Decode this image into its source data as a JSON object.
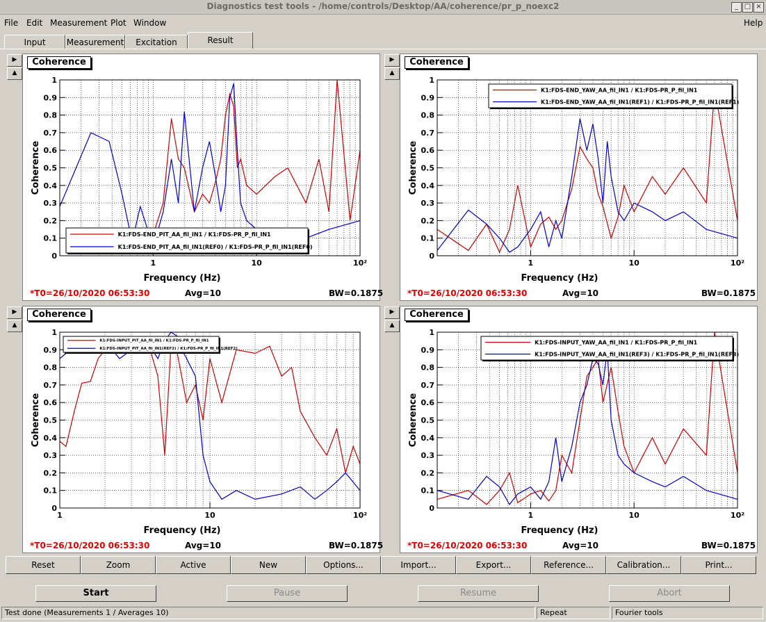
{
  "window": {
    "title": "Diagnostics test tools - /home/controls/Desktop/AA/coherence/pr_p_noexc2"
  },
  "menu": {
    "file": "File",
    "edit": "Edit",
    "measurement": "Measurement",
    "plot": "Plot",
    "window": "Window",
    "help": "Help"
  },
  "tabs": [
    "Input",
    "Measurement",
    "Excitation",
    "Result"
  ],
  "panels": [
    {
      "title": "Coherence",
      "t0": "*T0=26/10/2020 06:53:30",
      "avg": "Avg=10",
      "bw": "BW=0.1875",
      "legend": [
        "K1:FDS-END_PIT_AA_fil_IN1 / K1:FDS-PR_P_fil_IN1",
        "K1:FDS-END_PIT_AA_fil_IN1(REF0) / K1:FDS-PR_P_fil_IN1(REF0)"
      ]
    },
    {
      "title": "Coherence",
      "t0": "*T0=26/10/2020 06:53:30",
      "avg": "Avg=10",
      "bw": "BW=0.1875",
      "legend": [
        "K1:FDS-END_YAW_AA_fil_IN1 / K1:FDS-PR_P_fil_IN1",
        "K1:FDS-END_YAW_AA_fil_IN1(REF1) / K1:FDS-PR_P_fil_IN1(REF1)"
      ]
    },
    {
      "title": "Coherence",
      "t0": "*T0=26/10/2020 06:53:30",
      "avg": "Avg=10",
      "bw": "BW=0.1875",
      "legend": [
        "K1:FDS-INPUT_PIT_AA_fil_IN1 / K1:FDS-PR_P_fil_IN1",
        "K1:FDS-INPUT_PIT_AA_fil_IN1(REF2) / K1:FDS-PR_P_fil_IN1(REF2)"
      ]
    },
    {
      "title": "Coherence",
      "t0": "*T0=26/10/2020 06:53:30",
      "avg": "Avg=10",
      "bw": "BW=0.1875",
      "legend": [
        "K1:FDS-INPUT_YAW_AA_fil_IN1 / K1:FDS-PR_P_fil_IN1",
        "K1:FDS-INPUT_YAW_AA_fil_IN1(REF3) / K1:FDS-PR_P_fil_IN1(REF3)"
      ]
    }
  ],
  "chart_data": [
    {
      "type": "line",
      "xlabel": "Frequency (Hz)",
      "ylabel": "Coherence",
      "xscale": "log",
      "xlim": [
        0.125,
        100
      ],
      "ylim": [
        0,
        1
      ],
      "xticks": [
        "1",
        "10",
        "10²"
      ],
      "yticks": [
        "0",
        "0.1",
        "0.2",
        "0.3",
        "0.4",
        "0.5",
        "0.6",
        "0.7",
        "0.8",
        "0.9",
        "1"
      ],
      "legend_position": "bottom-center",
      "series": [
        {
          "color": "#cc0000",
          "x": [
            0.75,
            1.0,
            1.25,
            1.5,
            1.75,
            2.0,
            2.5,
            3.0,
            3.5,
            4.0,
            4.5,
            5.0,
            5.5,
            6.0,
            6.5,
            7.0,
            8.0,
            10.0,
            15.0,
            20.0,
            30.0,
            40.0,
            50.0,
            60.0,
            80.0,
            100.0
          ],
          "y": [
            0.05,
            0.12,
            0.3,
            0.78,
            0.55,
            0.5,
            0.25,
            0.35,
            0.3,
            0.42,
            0.55,
            0.8,
            0.92,
            0.85,
            0.5,
            0.55,
            0.4,
            0.35,
            0.45,
            0.5,
            0.3,
            0.55,
            0.25,
            1.0,
            0.2,
            0.6
          ]
        },
        {
          "color": "#0000cc",
          "x": [
            0.125,
            0.25,
            0.375,
            0.5,
            0.625,
            0.75,
            1.0,
            1.25,
            1.5,
            1.75,
            2.0,
            2.5,
            3.0,
            3.5,
            4.0,
            4.5,
            5.0,
            5.5,
            6.0,
            6.5,
            7.0,
            8.0,
            10.0,
            15.0,
            20.0,
            30.0,
            50.0,
            100.0
          ],
          "y": [
            0.28,
            0.7,
            0.65,
            0.35,
            0.08,
            0.28,
            0.05,
            0.25,
            0.55,
            0.3,
            0.82,
            0.25,
            0.5,
            0.65,
            0.45,
            0.25,
            0.4,
            0.9,
            0.98,
            0.6,
            0.3,
            0.2,
            0.15,
            0.1,
            0.12,
            0.1,
            0.15,
            0.2
          ]
        }
      ]
    },
    {
      "type": "line",
      "xlabel": "Frequency (Hz)",
      "ylabel": "Coherence",
      "xscale": "log",
      "xlim": [
        0.125,
        100
      ],
      "ylim": [
        0,
        1
      ],
      "xticks": [
        "1",
        "10",
        "10²"
      ],
      "yticks": [
        "0",
        "0.1",
        "0.2",
        "0.3",
        "0.4",
        "0.5",
        "0.6",
        "0.7",
        "0.8",
        "0.9",
        "1"
      ],
      "legend_position": "top-right",
      "series": [
        {
          "color": "#cc0000",
          "x": [
            0.125,
            0.25,
            0.375,
            0.5,
            0.625,
            0.75,
            1.0,
            1.25,
            1.5,
            1.75,
            2.0,
            2.5,
            3.0,
            3.5,
            4.0,
            4.5,
            5.0,
            6.0,
            7.0,
            8.0,
            10.0,
            15.0,
            20.0,
            30.0,
            50.0,
            60.0,
            100.0
          ],
          "y": [
            0.15,
            0.03,
            0.18,
            0.02,
            0.15,
            0.4,
            0.05,
            0.18,
            0.22,
            0.15,
            0.2,
            0.38,
            0.62,
            0.55,
            0.5,
            0.35,
            0.28,
            0.1,
            0.22,
            0.4,
            0.25,
            0.45,
            0.35,
            0.5,
            0.3,
            0.95,
            0.2
          ]
        },
        {
          "color": "#0000cc",
          "x": [
            0.125,
            0.25,
            0.375,
            0.5,
            0.625,
            0.75,
            1.0,
            1.25,
            1.5,
            1.75,
            2.0,
            2.5,
            3.0,
            3.5,
            4.0,
            4.5,
            5.0,
            5.5,
            6.0,
            7.0,
            8.0,
            10.0,
            15.0,
            20.0,
            30.0,
            50.0,
            100.0
          ],
          "y": [
            0.03,
            0.26,
            0.18,
            0.1,
            0.02,
            0.05,
            0.15,
            0.25,
            0.05,
            0.2,
            0.1,
            0.45,
            0.78,
            0.6,
            0.75,
            0.55,
            0.3,
            0.65,
            0.45,
            0.25,
            0.2,
            0.3,
            0.25,
            0.2,
            0.25,
            0.15,
            0.1
          ]
        }
      ]
    },
    {
      "type": "line",
      "xlabel": "Frequency (Hz)",
      "ylabel": "Coherence",
      "xscale": "log",
      "xlim": [
        1,
        100
      ],
      "ylim": [
        0,
        1
      ],
      "xticks": [
        "1",
        "10",
        "10²"
      ],
      "yticks": [
        "0",
        "0.1",
        "0.2",
        "0.3",
        "0.4",
        "0.5",
        "0.6",
        "0.7",
        "0.8",
        "0.9",
        "1"
      ],
      "legend_position": "top-left",
      "series": [
        {
          "color": "#cc0000",
          "x": [
            1.0,
            1.1,
            1.25,
            1.4,
            1.6,
            1.8,
            2.0,
            2.25,
            2.5,
            3.0,
            3.5,
            4.0,
            4.5,
            5.0,
            5.5,
            6.0,
            7.0,
            8.0,
            9.0,
            10.0,
            12.0,
            15.0,
            20.0,
            25.0,
            30.0,
            35.0,
            40.0,
            50.0,
            60.0,
            70.0,
            80.0,
            90.0,
            100.0
          ],
          "y": [
            0.38,
            0.35,
            0.55,
            0.71,
            0.72,
            0.85,
            0.9,
            0.95,
            0.92,
            0.93,
            0.88,
            0.9,
            0.75,
            0.3,
            0.92,
            0.9,
            0.6,
            0.7,
            0.5,
            0.85,
            0.6,
            0.9,
            0.88,
            0.92,
            0.75,
            0.8,
            0.55,
            0.4,
            0.3,
            0.45,
            0.2,
            0.35,
            0.25
          ]
        },
        {
          "color": "#0000cc",
          "x": [
            1.0,
            1.1,
            1.25,
            1.5,
            2.0,
            2.5,
            3.0,
            3.5,
            4.0,
            4.5,
            5.0,
            5.5,
            6.0,
            6.5,
            7.0,
            8.0,
            9.0,
            10.0,
            12.0,
            15.0,
            20.0,
            30.0,
            40.0,
            50.0,
            60.0,
            70.0,
            80.0,
            100.0
          ],
          "y": [
            0.85,
            0.88,
            0.9,
            0.92,
            0.95,
            0.85,
            0.9,
            0.95,
            0.92,
            0.85,
            0.95,
            1.0,
            0.98,
            0.9,
            0.85,
            0.75,
            0.3,
            0.15,
            0.05,
            0.1,
            0.05,
            0.08,
            0.12,
            0.05,
            0.1,
            0.15,
            0.2,
            0.1
          ]
        }
      ]
    },
    {
      "type": "line",
      "xlabel": "Frequency (Hz)",
      "ylabel": "Coherence",
      "xscale": "log",
      "xlim": [
        0.125,
        100
      ],
      "ylim": [
        0,
        1
      ],
      "xticks": [
        "1",
        "10",
        "10²"
      ],
      "yticks": [
        "0",
        "0.1",
        "0.2",
        "0.3",
        "0.4",
        "0.5",
        "0.6",
        "0.7",
        "0.8",
        "0.9",
        "1"
      ],
      "legend_position": "top-right",
      "series": [
        {
          "color": "#cc0000",
          "x": [
            0.125,
            0.25,
            0.375,
            0.5,
            0.625,
            0.75,
            1.0,
            1.25,
            1.5,
            1.75,
            2.0,
            2.5,
            3.0,
            3.5,
            4.0,
            4.5,
            5.0,
            6.0,
            7.0,
            8.0,
            10.0,
            15.0,
            20.0,
            30.0,
            50.0,
            60.0,
            100.0
          ],
          "y": [
            0.05,
            0.1,
            0.02,
            0.1,
            0.2,
            0.03,
            0.08,
            0.1,
            0.04,
            0.1,
            0.3,
            0.2,
            0.5,
            0.75,
            0.8,
            0.85,
            0.6,
            0.8,
            0.55,
            0.35,
            0.2,
            0.4,
            0.25,
            0.45,
            0.3,
            1.0,
            0.2
          ]
        },
        {
          "color": "#0000cc",
          "x": [
            0.125,
            0.25,
            0.375,
            0.5,
            0.625,
            0.75,
            1.0,
            1.25,
            1.5,
            1.75,
            2.0,
            2.5,
            3.0,
            3.5,
            4.0,
            4.5,
            5.0,
            5.5,
            6.0,
            7.0,
            8.0,
            10.0,
            15.0,
            20.0,
            30.0,
            50.0,
            100.0
          ],
          "y": [
            0.1,
            0.05,
            0.18,
            0.12,
            0.02,
            0.08,
            0.12,
            0.05,
            0.15,
            0.4,
            0.15,
            0.35,
            0.6,
            0.7,
            0.85,
            0.82,
            0.7,
            0.9,
            0.5,
            0.3,
            0.25,
            0.2,
            0.15,
            0.12,
            0.18,
            0.1,
            0.05
          ]
        }
      ]
    }
  ],
  "side_buttons": {
    "up": "▲",
    "right": "▶"
  },
  "toolbar": [
    "Reset",
    "Zoom",
    "Active",
    "New",
    "Options...",
    "Import...",
    "Export...",
    "Reference...",
    "Calibration...",
    "Print..."
  ],
  "main_buttons": {
    "start": "Start",
    "pause": "Pause",
    "resume": "Resume",
    "abort": "Abort"
  },
  "status": {
    "message": "Test done (Measurements 1 / Averages 10)",
    "mode": "Repeat",
    "tool": "Fourier tools"
  }
}
